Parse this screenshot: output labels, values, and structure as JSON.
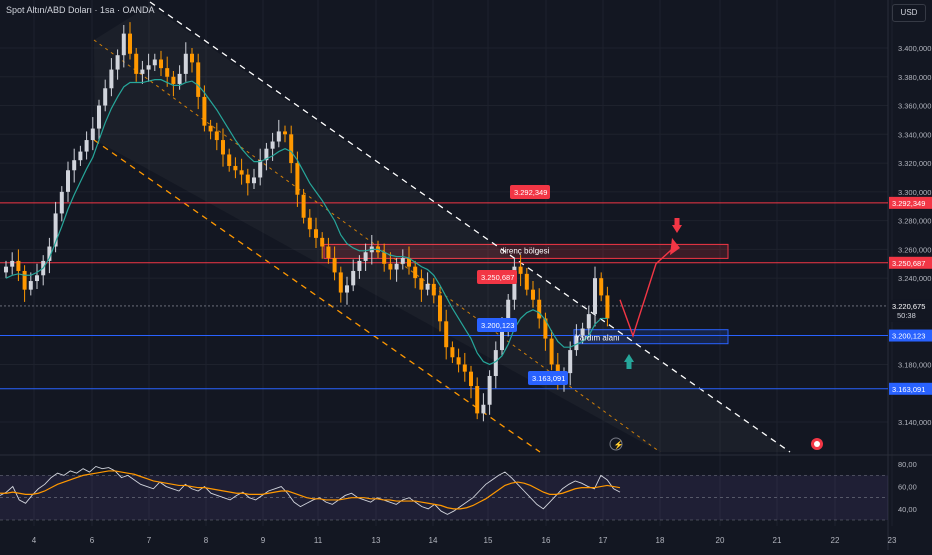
{
  "header": {
    "symbol": "Spot Altın/ABD Doları · 1sa · OANDA",
    "currency": "USD"
  },
  "colors": {
    "background": "#131722",
    "grid": "#1e222d",
    "up": "#d1d4dc",
    "down": "#ff9800",
    "ema": "#26a69a",
    "resistance": "#f23645",
    "support": "#2962ff",
    "channel_upper": "#ffffff",
    "channel_mid": "#ff9800",
    "rsi": "#d1d4dc",
    "rsi_ma": "#ff9800"
  },
  "chart_data": [
    {
      "type": "line",
      "title": "",
      "xlabel": "",
      "ylabel": "",
      "x_ticks": [
        "4",
        "6",
        "7",
        "8",
        "9",
        "11",
        "13",
        "14",
        "15",
        "16",
        "17",
        "18",
        "20",
        "21",
        "22",
        "23"
      ],
      "y_ticks": [
        "3.400,000",
        "3.380,000",
        "3.360,000",
        "3.340,000",
        "3.320,000",
        "3.300,000",
        "3.280,000",
        "3.260,000",
        "3.240,000",
        "3.180,000",
        "3.140,000"
      ],
      "ylim": [
        3130,
        3420
      ],
      "grid": true,
      "series": [
        {
          "values": [
            3248,
            3252,
            3245,
            3232,
            3238,
            3242,
            3252,
            3262,
            3285,
            3300,
            3315,
            3322,
            3328,
            3336,
            3344,
            3360,
            3372,
            3385,
            3395,
            3410,
            3396,
            3382,
            3385,
            3388,
            3392,
            3386,
            3380,
            3375,
            3382,
            3396,
            3390,
            3366,
            3346,
            3342,
            3336,
            3326,
            3318,
            3315,
            3312,
            3306,
            3310,
            3322,
            3330,
            3335,
            3342,
            3340,
            3320,
            3298,
            3282,
            3274,
            3268,
            3262,
            3254,
            3244,
            3230,
            3235,
            3245,
            3252,
            3258,
            3262,
            3258,
            3250,
            3246,
            3250,
            3254,
            3248,
            3240,
            3232,
            3236,
            3228,
            3210,
            3192,
            3185,
            3180,
            3175,
            3165,
            3146,
            3152,
            3172,
            3190,
            3205,
            3225,
            3248,
            3243,
            3232,
            3225,
            3212,
            3198,
            3180,
            3168,
            3174,
            3190,
            3200,
            3205,
            3215,
            3240,
            3228,
            3212
          ]
        },
        {
          "name": "",
          "values": [
            3240,
            3242,
            3243,
            3242,
            3242,
            3244,
            3247,
            3254,
            3265,
            3276,
            3288,
            3298,
            3307,
            3316,
            3324,
            3336,
            3348,
            3358,
            3366,
            3373,
            3376,
            3376,
            3376,
            3377,
            3378,
            3378,
            3376,
            3374,
            3374,
            3376,
            3377,
            3374,
            3369,
            3363,
            3357,
            3350,
            3343,
            3336,
            3330,
            3325,
            3321,
            3321,
            3323,
            3325,
            3328,
            3330,
            3328,
            3322,
            3314,
            3306,
            3300,
            3294,
            3287,
            3280,
            3270,
            3264,
            3261,
            3259,
            3259,
            3260,
            3260,
            3258,
            3256,
            3255,
            3255,
            3254,
            3251,
            3248,
            3246,
            3242,
            3235,
            3227,
            3219,
            3212,
            3205,
            3198,
            3188,
            3182,
            3180,
            3182,
            3186,
            3194,
            3205,
            3212,
            3216,
            3218,
            3216,
            3211,
            3203,
            3196,
            3192,
            3192,
            3194,
            3196,
            3200,
            3208,
            3212,
            3212
          ]
        }
      ],
      "levels": [
        {
          "value": 3292.349,
          "label": "3.292,349"
        },
        {
          "value": 3250.687,
          "label": "3.250,687"
        },
        {
          "value": 3220.675,
          "label": "3.220,675"
        },
        {
          "value": 3200.123,
          "label": "3.200,123"
        },
        {
          "value": 3163.091,
          "label": "3.163,091"
        }
      ],
      "current_price": {
        "label": "3.220,675",
        "countdown": "50:38"
      },
      "annotations": [
        {
          "text": "direnç bölgesi"
        },
        {
          "text": "Yardım alanı"
        },
        {
          "text": "3.292,349"
        },
        {
          "text": "3.250,687"
        },
        {
          "text": "3.200,123"
        },
        {
          "text": "3.163,091"
        }
      ]
    },
    {
      "type": "line",
      "title": "",
      "y_ticks": [
        "80,00",
        "60,00",
        "40,00"
      ],
      "ylim": [
        30,
        82
      ],
      "series": [
        {
          "values": [
            52,
            55,
            60,
            48,
            45,
            52,
            58,
            62,
            68,
            72,
            70,
            74,
            72,
            76,
            73,
            78,
            76,
            77,
            74,
            68,
            70,
            66,
            62,
            60,
            58,
            64,
            60,
            58,
            56,
            62,
            58,
            56,
            60,
            54,
            52,
            50,
            48,
            52,
            55,
            50,
            48,
            52,
            56,
            58,
            60,
            54,
            46,
            42,
            45,
            48,
            50,
            46,
            44,
            48,
            52,
            54,
            50,
            48,
            46,
            50,
            48,
            46,
            44,
            48,
            50,
            46,
            42,
            40,
            44,
            38,
            35,
            38,
            42,
            46,
            50,
            56,
            62,
            66,
            70,
            73,
            68,
            62,
            56,
            50,
            44,
            40,
            46,
            52,
            58,
            62,
            65,
            63,
            60,
            58,
            70,
            66,
            58,
            55
          ]
        },
        {
          "values": [
            54,
            54,
            55,
            54,
            53,
            53,
            54,
            56,
            59,
            62,
            64,
            66,
            68,
            70,
            71,
            72,
            73,
            74,
            74,
            73,
            72,
            71,
            69,
            67,
            65,
            64,
            63,
            62,
            61,
            61,
            60,
            59,
            59,
            58,
            57,
            56,
            55,
            54,
            54,
            53,
            53,
            53,
            54,
            55,
            56,
            56,
            54,
            52,
            50,
            49,
            49,
            48,
            48,
            48,
            49,
            50,
            50,
            50,
            49,
            49,
            48,
            48,
            47,
            47,
            47,
            47,
            46,
            45,
            44,
            43,
            41,
            40,
            40,
            41,
            43,
            46,
            49,
            53,
            57,
            61,
            63,
            64,
            63,
            61,
            58,
            55,
            53,
            53,
            54,
            56,
            58,
            59,
            59,
            59,
            60,
            61,
            60,
            59
          ]
        }
      ]
    }
  ]
}
